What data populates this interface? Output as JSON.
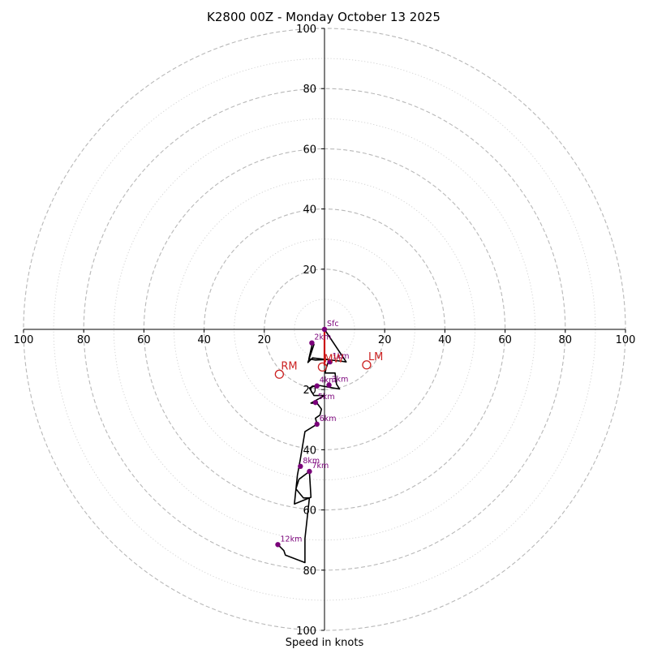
{
  "chart_data": {
    "type": "hodograph",
    "title": "K2800 00Z - Monday October 13 2025",
    "xlabel": "Speed in knots",
    "units": "knots",
    "max_speed": 100,
    "ring_major_step": 20,
    "ring_minor_step": 10,
    "axis_ticks_display": [
      "100",
      "80",
      "60",
      "40",
      "20",
      "20",
      "40",
      "60",
      "80",
      "100"
    ],
    "vertical_ticks_top": [
      "20",
      "40",
      "60",
      "80",
      "100"
    ],
    "vertical_ticks_bottom": [
      "20",
      "40",
      "60",
      "80",
      "100"
    ],
    "trace": [
      [
        0,
        0
      ],
      [
        7.2,
        -10.8
      ],
      [
        5,
        -10.5
      ],
      [
        -4,
        -9.5
      ],
      [
        -5.5,
        -11
      ],
      [
        -3.5,
        -5
      ],
      [
        -4,
        -4.5
      ],
      [
        -5.2,
        -9.8
      ],
      [
        -3,
        -10.2
      ],
      [
        1.5,
        -10
      ],
      [
        0.5,
        -13
      ],
      [
        0.2,
        -14.5
      ],
      [
        3.5,
        -14.5
      ],
      [
        4,
        -18.2
      ],
      [
        5,
        -19.8
      ],
      [
        3,
        -19.5
      ],
      [
        -2.5,
        -18.5
      ],
      [
        -5,
        -19.5
      ],
      [
        -3.5,
        -22
      ],
      [
        0,
        -22
      ],
      [
        -4.5,
        -24.5
      ],
      [
        -2.5,
        -24.5
      ],
      [
        -1,
        -26.5
      ],
      [
        -1.5,
        -28.5
      ],
      [
        -3,
        -29.5
      ],
      [
        -2.5,
        -31.5
      ],
      [
        -6.5,
        -34
      ],
      [
        -8,
        -43
      ],
      [
        -9,
        -48.5
      ],
      [
        -10,
        -58
      ],
      [
        -4.5,
        -55.8
      ],
      [
        -5,
        -47.2
      ],
      [
        -8.5,
        -49.8
      ],
      [
        -9.5,
        -53
      ],
      [
        -7,
        -56
      ],
      [
        -5,
        -56
      ],
      [
        -6.5,
        -69.5
      ],
      [
        -6.5,
        -77.5
      ],
      [
        -13,
        -75
      ],
      [
        -13.5,
        -73.5
      ],
      [
        -15.5,
        -71.5
      ]
    ],
    "height_points": [
      {
        "label": "Sfc",
        "u": 0,
        "v": 0
      },
      {
        "label": "1km",
        "u": 1.8,
        "v": -10.8
      },
      {
        "label": "2km",
        "u": -4.2,
        "v": -4.5
      },
      {
        "label": "3km",
        "u": 1.5,
        "v": -18.5
      },
      {
        "label": "4km",
        "u": -2.5,
        "v": -18.8
      },
      {
        "label": "5km",
        "u": -3,
        "v": -24.3
      },
      {
        "label": "6km",
        "u": -2.5,
        "v": -31.5
      },
      {
        "label": "7km",
        "u": -5,
        "v": -47.2
      },
      {
        "label": "8km",
        "u": -8,
        "v": -45.5
      },
      {
        "label": "12km",
        "u": -15.5,
        "v": -71.5
      }
    ],
    "shear_vector": {
      "from": [
        0,
        0
      ],
      "to": [
        0,
        -12
      ]
    },
    "storm_motion": [
      {
        "label": "RM",
        "u": -15,
        "v": -14.9
      },
      {
        "label": "MW",
        "u": -0.7,
        "v": -12.5
      },
      {
        "label": "LM",
        "u": 14,
        "v": -11.8
      }
    ]
  }
}
